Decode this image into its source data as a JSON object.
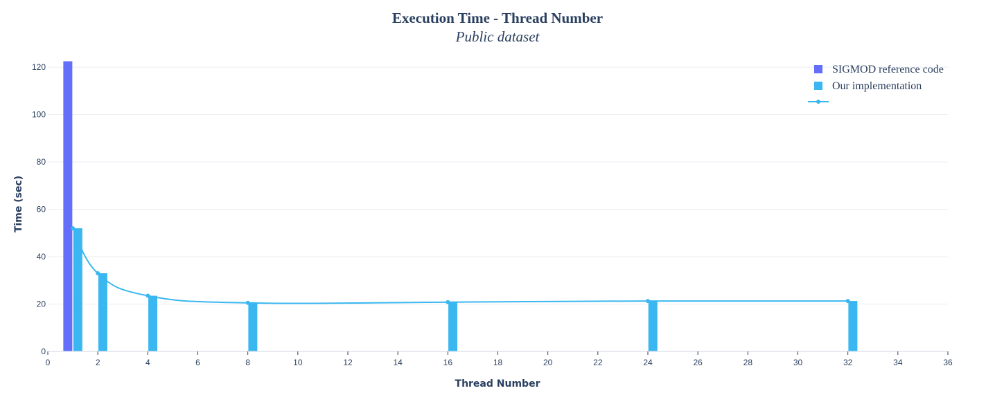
{
  "chart_data": {
    "type": "bar",
    "title": "Execution Time - Thread Number",
    "subtitle": "Public dataset",
    "xlabel": "Thread Number",
    "ylabel": "Time (sec)",
    "xlim": [
      0,
      36
    ],
    "ylim": [
      0,
      125
    ],
    "xticks": [
      0,
      2,
      4,
      6,
      8,
      10,
      12,
      14,
      16,
      18,
      20,
      22,
      24,
      26,
      28,
      30,
      32,
      34,
      36
    ],
    "yticks": [
      0,
      20,
      40,
      60,
      80,
      100,
      120
    ],
    "grid": true,
    "legend_position": "top-right",
    "series": [
      {
        "name": "SIGMOD reference code",
        "kind": "bar",
        "color": "#636efa",
        "x": [
          1
        ],
        "values": [
          122.5
        ]
      },
      {
        "name": "Our implementation",
        "kind": "bar",
        "color": "#3ab7f0",
        "x": [
          1,
          2,
          4,
          8,
          16,
          24,
          32
        ],
        "values": [
          52,
          33,
          23.5,
          20.5,
          20.8,
          21.3,
          21.3
        ]
      },
      {
        "name": "",
        "kind": "line",
        "color": "#3ab7f0",
        "x": [
          1,
          2,
          4,
          8,
          16,
          24,
          32
        ],
        "values": [
          52,
          33,
          23.5,
          20.5,
          20.8,
          21.3,
          21.3
        ]
      }
    ]
  }
}
